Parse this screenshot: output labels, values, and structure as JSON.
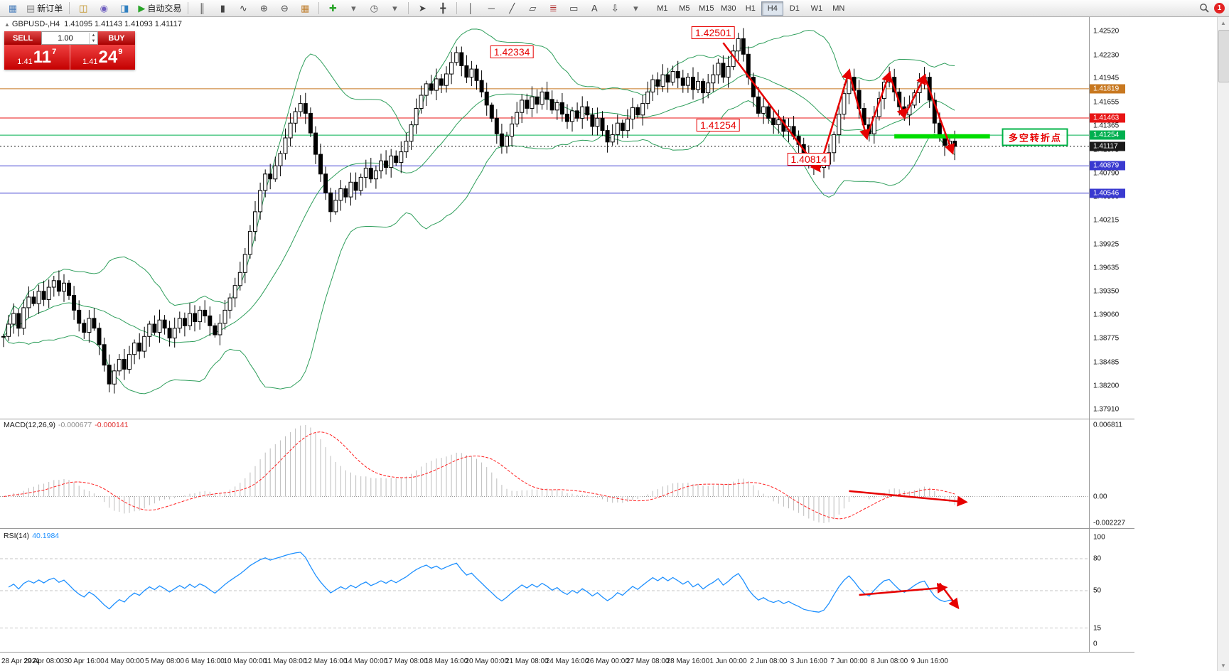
{
  "toolbar": {
    "groups": [
      {
        "items": [
          {
            "name": "charts-icon",
            "glyph": "▦",
            "color": "#4a7ebb"
          },
          {
            "name": "new-order-button",
            "glyph": "▤",
            "color": "#888",
            "label": "新订单"
          }
        ]
      },
      {
        "items": [
          {
            "name": "market-watch-icon",
            "glyph": "◫",
            "color": "#c09020"
          },
          {
            "name": "navigator-icon",
            "glyph": "◉",
            "color": "#7060c0"
          },
          {
            "name": "terminal-icon",
            "glyph": "◨",
            "color": "#3080c0"
          },
          {
            "name": "autotrading-button",
            "glyph": "▶",
            "color": "#28a428",
            "label": "自动交易"
          }
        ]
      },
      {
        "items": [
          {
            "name": "bar-chart-icon",
            "glyph": "║",
            "color": "#444"
          },
          {
            "name": "candlestick-chart-icon",
            "glyph": "▮",
            "color": "#444"
          },
          {
            "name": "line-chart-icon",
            "glyph": "∿",
            "color": "#444"
          },
          {
            "name": "zoom-in-icon",
            "glyph": "⊕",
            "color": "#444"
          },
          {
            "name": "zoom-out-icon",
            "glyph": "⊖",
            "color": "#444"
          },
          {
            "name": "tile-windows-icon",
            "glyph": "▦",
            "color": "#c08030"
          }
        ]
      },
      {
        "items": [
          {
            "name": "indicators-icon",
            "glyph": "✚",
            "color": "#28a428"
          },
          {
            "name": "indicators-dropdown-icon",
            "glyph": "▾",
            "color": "#666"
          },
          {
            "name": "periods-icon",
            "glyph": "◷",
            "color": "#555"
          },
          {
            "name": "periods-dropdown-icon",
            "glyph": "▾",
            "color": "#666"
          }
        ]
      },
      {
        "items": [
          {
            "name": "cursor-icon",
            "glyph": "➤",
            "color": "#444"
          },
          {
            "name": "crosshair-icon",
            "glyph": "╋",
            "color": "#444"
          }
        ]
      },
      {
        "items": [
          {
            "name": "vertical-line-icon",
            "glyph": "│",
            "color": "#444"
          },
          {
            "name": "horizontal-line-icon",
            "glyph": "─",
            "color": "#444"
          },
          {
            "name": "trendline-icon",
            "glyph": "╱",
            "color": "#444"
          },
          {
            "name": "channel-icon",
            "glyph": "▱",
            "color": "#444"
          },
          {
            "name": "fibonacci-icon",
            "glyph": "≣",
            "color": "#b03030"
          },
          {
            "name": "shapes-icon",
            "glyph": "▭",
            "color": "#444"
          },
          {
            "name": "text-icon",
            "glyph": "A",
            "color": "#444"
          },
          {
            "name": "arrows-icon",
            "glyph": "⇩",
            "color": "#444"
          },
          {
            "name": "objects-dropdown-icon",
            "glyph": "▾",
            "color": "#666"
          }
        ]
      }
    ],
    "timeframes": {
      "items": [
        "M1",
        "M5",
        "M15",
        "M30",
        "H1",
        "H4",
        "D1",
        "W1",
        "MN"
      ],
      "active": "H4"
    },
    "notification_count": "1"
  },
  "trade_widget": {
    "sell_label": "SELL",
    "buy_label": "BUY",
    "volume": "1.00",
    "bid_small": "1.41",
    "bid_big": "11",
    "bid_sup": "7",
    "ask_small": "1.41",
    "ask_big": "24",
    "ask_sup": "9"
  },
  "chart_data": {
    "type": "candlestick",
    "symbol": "GBPUSD-",
    "timeframe": "H4",
    "ohlc_header": {
      "symbol_tf": "GBPUSD-,H4",
      "values": "1.41095 1.41143 1.41093 1.41117"
    },
    "colors": {
      "bollinger": "#2e9e5b",
      "up_candle": "#ffffff",
      "down_candle": "#000000",
      "macd_histogram": "#bdbdbd",
      "macd_signal": "#ff2020",
      "rsi_line": "#1e90ff",
      "annotation": "#e60000",
      "support_bar": "#00dd00"
    },
    "y_ticks": [
      "1.42520",
      "1.42230",
      "1.41945",
      "1.41655",
      "1.41365",
      "1.41075",
      "1.40790",
      "1.40500",
      "1.40215",
      "1.39925",
      "1.39635",
      "1.39350",
      "1.39060",
      "1.38775",
      "1.38485",
      "1.38200",
      "1.37910"
    ],
    "levels": [
      {
        "price": 1.41819,
        "label": "1.41819",
        "color": "#c87820",
        "style": "solid"
      },
      {
        "price": 1.41463,
        "label": "1.41463",
        "color": "#e81414",
        "style": "solid"
      },
      {
        "price": 1.41254,
        "label": "1.41254",
        "color": "#00b050",
        "style": "solid"
      },
      {
        "price": 1.41117,
        "label": "1.41117",
        "color": "#1a1a1a",
        "style": "dotted"
      },
      {
        "price": 1.40879,
        "label": "1.40879",
        "color": "#3a3ad0",
        "style": "solid"
      },
      {
        "price": 1.40546,
        "label": "1.40546",
        "color": "#3a3ad0",
        "style": "solid"
      }
    ],
    "label_step": 8,
    "x_labels": [
      "28 Apr 2021",
      "29 Apr 08:00",
      "30 Apr 16:00",
      "4 May 00:00",
      "5 May 08:00",
      "6 May 16:00",
      "10 May 00:00",
      "11 May 08:00",
      "12 May 16:00",
      "14 May 00:00",
      "17 May 08:00",
      "18 May 16:00",
      "20 May 00:00",
      "21 May 08:00",
      "24 May 16:00",
      "26 May 00:00",
      "27 May 08:00",
      "28 May 16:00",
      "1 Jun 00:00",
      "2 Jun 08:00",
      "3 Jun 16:00",
      "7 Jun 00:00",
      "8 Jun 08:00",
      "9 Jun 16:00"
    ],
    "closes": [
      1.388,
      1.3895,
      1.3908,
      1.389,
      1.3915,
      1.3928,
      1.392,
      1.3935,
      1.3925,
      1.394,
      1.3948,
      1.3935,
      1.3945,
      1.393,
      1.3912,
      1.3896,
      1.3885,
      1.3902,
      1.389,
      1.387,
      1.3845,
      1.3822,
      1.3838,
      1.3852,
      1.384,
      1.3858,
      1.3872,
      1.3862,
      1.388,
      1.3895,
      1.3885,
      1.39,
      1.389,
      1.3878,
      1.389,
      1.3902,
      1.3893,
      1.3908,
      1.3898,
      1.3912,
      1.3905,
      1.3893,
      1.3882,
      1.3896,
      1.3912,
      1.3927,
      1.3942,
      1.3958,
      1.398,
      1.4008,
      1.4032,
      1.4058,
      1.4078,
      1.4072,
      1.4088,
      1.4103,
      1.4122,
      1.414,
      1.4154,
      1.4164,
      1.4152,
      1.4128,
      1.4102,
      1.4078,
      1.4055,
      1.4032,
      1.4046,
      1.406,
      1.405,
      1.4068,
      1.4058,
      1.4074,
      1.4085,
      1.4072,
      1.4082,
      1.4094,
      1.4086,
      1.41,
      1.4092,
      1.4105,
      1.4118,
      1.4138,
      1.4158,
      1.4174,
      1.4188,
      1.418,
      1.4194,
      1.4186,
      1.42,
      1.4214,
      1.4226,
      1.421,
      1.4196,
      1.4206,
      1.4192,
      1.4178,
      1.4162,
      1.4146,
      1.4127,
      1.4112,
      1.4124,
      1.4139,
      1.4153,
      1.4168,
      1.4158,
      1.4172,
      1.4163,
      1.4178,
      1.4169,
      1.4156,
      1.4165,
      1.4151,
      1.4142,
      1.4155,
      1.4146,
      1.416,
      1.415,
      1.4136,
      1.4146,
      1.4131,
      1.4117,
      1.4126,
      1.414,
      1.4131,
      1.4145,
      1.4159,
      1.415,
      1.4164,
      1.4178,
      1.4193,
      1.4185,
      1.4199,
      1.419,
      1.4203,
      1.4195,
      1.4186,
      1.4196,
      1.4181,
      1.4191,
      1.4177,
      1.4189,
      1.4199,
      1.4213,
      1.4196,
      1.4209,
      1.4228,
      1.4243,
      1.4224,
      1.4196,
      1.4172,
      1.4152,
      1.416,
      1.4146,
      1.4138,
      1.4144,
      1.413,
      1.4136,
      1.4124,
      1.4114,
      1.41,
      1.4094,
      1.4089,
      1.4086,
      1.409,
      1.4104,
      1.4126,
      1.4151,
      1.4176,
      1.4196,
      1.418,
      1.4158,
      1.4138,
      1.4127,
      1.4148,
      1.417,
      1.419,
      1.4196,
      1.4178,
      1.416,
      1.415,
      1.4162,
      1.4177,
      1.419,
      1.4196,
      1.4168,
      1.414,
      1.4122,
      1.4113,
      1.4118,
      1.41117
    ],
    "wick_overrides": {
      "90": {
        "high": 1.42334
      },
      "146": {
        "high": 1.42501
      },
      "162": {
        "low": 1.40814
      },
      "189": {
        "low": 1.4095
      }
    },
    "bollinger": {
      "period": 20,
      "deviation": 2
    },
    "macd": {
      "name": "MACD(12,26,9)",
      "main_value": "-0.000677",
      "signal_value": "-0.000141",
      "ticks": [
        "0.006811",
        "0.00",
        "-0.002227"
      ]
    },
    "rsi": {
      "name": "RSI(14)",
      "value": "40.1984",
      "ticks": [
        "100",
        "80",
        "50",
        "15",
        "0"
      ],
      "levels": [
        80,
        50,
        15
      ]
    },
    "annotations": {
      "price_boxes": [
        {
          "index": 101,
          "price": 1.4227,
          "text": "1.42334"
        },
        {
          "index": 141,
          "price": 1.425,
          "text": "1.42501"
        },
        {
          "index": 142,
          "price": 1.4138,
          "text": "1.41254"
        },
        {
          "index": 160,
          "price": 1.4096,
          "text": "1.40814"
        }
      ],
      "turn_label": {
        "index": 205,
        "price": 1.41233,
        "text": "多空转折点"
      },
      "trend_arrows": [
        {
          "from": [
            143,
            1.4238
          ],
          "to": [
            162,
            1.4083
          ],
          "head": true
        },
        {
          "from": [
            162,
            1.4083
          ],
          "to": [
            168,
            1.4203
          ],
          "head": true
        },
        {
          "from": [
            168,
            1.4203
          ],
          "to": [
            171.5,
            1.4123
          ],
          "head": true
        },
        {
          "from": [
            171.5,
            1.4123
          ],
          "to": [
            176,
            1.42
          ],
          "head": true
        },
        {
          "from": [
            176,
            1.42
          ],
          "to": [
            179,
            1.4148
          ],
          "head": true
        },
        {
          "from": [
            179,
            1.4148
          ],
          "to": [
            183,
            1.4197
          ],
          "head": true
        },
        {
          "from": [
            183,
            1.4197
          ],
          "to": [
            188.5,
            1.4105
          ],
          "head": true
        }
      ],
      "support_bar": {
        "from_index": 177,
        "to_index": 196,
        "price": 1.4124
      },
      "macd_arrow": {
        "from": [
          168,
          0.0005
        ],
        "to": [
          191,
          -0.0005
        ]
      },
      "rsi_arrows": [
        {
          "from": [
            170,
            46
          ],
          "to": [
            187,
            53
          ]
        },
        {
          "from": [
            186,
            57
          ],
          "to": [
            189.5,
            35
          ]
        }
      ]
    }
  }
}
